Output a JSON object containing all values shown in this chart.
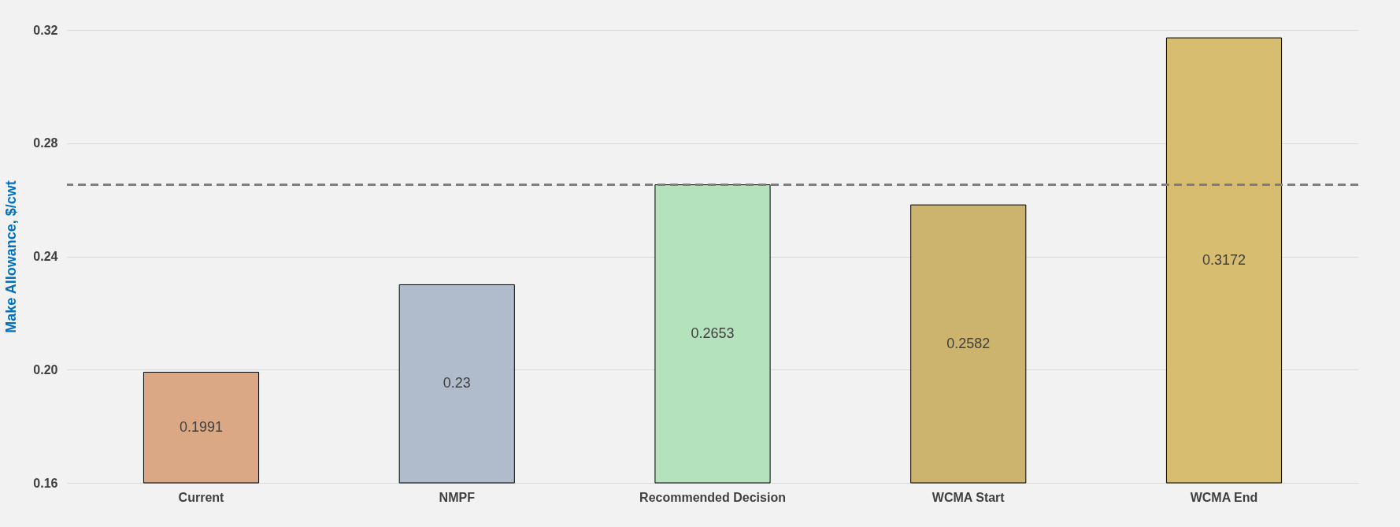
{
  "chart_data": {
    "type": "bar",
    "ylabel": "Make Allowance, $/cwt",
    "categories": [
      "Current",
      "NMPF",
      "Recommended Decision",
      "WCMA Start",
      "WCMA End"
    ],
    "values": [
      0.1991,
      0.23,
      0.2653,
      0.2582,
      0.3172
    ],
    "colors": [
      "#dba886",
      "#b0bccb",
      "#b4e2bd",
      "#cdb46e",
      "#d6bd70"
    ],
    "ylim": [
      0.16,
      0.32
    ],
    "yticks": [
      {
        "value": 0.16,
        "label": "0.16"
      },
      {
        "value": 0.2,
        "label": "0.20"
      },
      {
        "value": 0.24,
        "label": "0.24"
      },
      {
        "value": 0.28,
        "label": "0.28"
      },
      {
        "value": 0.32,
        "label": "0.32"
      }
    ],
    "grid": "y",
    "data_labels": true,
    "ref_lines": [
      {
        "axis": "y",
        "value": 0.2653,
        "color": "#7f7f7f",
        "line_style": "dashed"
      }
    ]
  }
}
